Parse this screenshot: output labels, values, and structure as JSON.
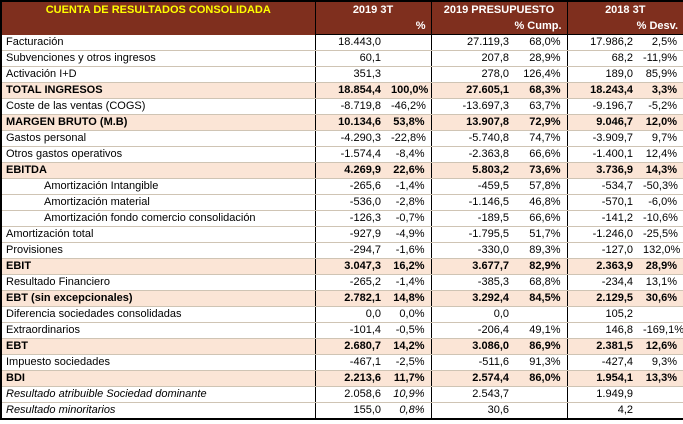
{
  "colors": {
    "header_bg": "#7F2F1E",
    "header_title_text": "#FFFF00",
    "header_text": "#FFFFFF",
    "highlight_row_bg": "#FBE5D6",
    "grid_line": "#CFC4B4",
    "border": "#000000"
  },
  "table": {
    "title": "CUENTA DE RESULTADOS CONSOLIDADA",
    "columns": [
      {
        "label": "2019 3T",
        "sub": "%"
      },
      {
        "label": "2019 PRESUPUESTO",
        "sub": "% Cump."
      },
      {
        "label": "2018 3T",
        "sub": "% Desv."
      }
    ],
    "rows": [
      {
        "label": "Facturación",
        "v1": "18.443,0",
        "p1": "",
        "v2": "27.119,3",
        "p2": "68,0%",
        "v3": "17.986,2",
        "p3": "2,5%"
      },
      {
        "label": "Subvenciones y otros ingresos",
        "v1": "60,1",
        "p1": "",
        "v2": "207,8",
        "p2": "28,9%",
        "v3": "68,2",
        "p3": "-11,9%"
      },
      {
        "label": "Activación I+D",
        "v1": "351,3",
        "p1": "",
        "v2": "278,0",
        "p2": "126,4%",
        "v3": "189,0",
        "p3": "85,9%"
      },
      {
        "label": "TOTAL INGRESOS",
        "v1": "18.854,4",
        "p1": "100,0%",
        "v2": "27.605,1",
        "p2": "68,3%",
        "v3": "18.243,4",
        "p3": "3,3%",
        "hl": true
      },
      {
        "label": "Coste de las ventas (COGS)",
        "v1": "-8.719,8",
        "p1": "-46,2%",
        "v2": "-13.697,3",
        "p2": "63,7%",
        "v3": "-9.196,7",
        "p3": "-5,2%"
      },
      {
        "label": "MARGEN BRUTO (M.B)",
        "v1": "10.134,6",
        "p1": "53,8%",
        "v2": "13.907,8",
        "p2": "72,9%",
        "v3": "9.046,7",
        "p3": "12,0%",
        "hl": true
      },
      {
        "label": "Gastos personal",
        "v1": "-4.290,3",
        "p1": "-22,8%",
        "v2": "-5.740,8",
        "p2": "74,7%",
        "v3": "-3.909,7",
        "p3": "9,7%"
      },
      {
        "label": "Otros gastos operativos",
        "v1": "-1.574,4",
        "p1": "-8,4%",
        "v2": "-2.363,8",
        "p2": "66,6%",
        "v3": "-1.400,1",
        "p3": "12,4%"
      },
      {
        "label": "EBITDA",
        "v1": "4.269,9",
        "p1": "22,6%",
        "v2": "5.803,2",
        "p2": "73,6%",
        "v3": "3.736,9",
        "p3": "14,3%",
        "hl": true
      },
      {
        "label": "Amortización Intangible",
        "v1": "-265,6",
        "p1": "-1,4%",
        "v2": "-459,5",
        "p2": "57,8%",
        "v3": "-534,7",
        "p3": "-50,3%",
        "ind": true
      },
      {
        "label": "Amortización material",
        "v1": "-536,0",
        "p1": "-2,8%",
        "v2": "-1.146,5",
        "p2": "46,8%",
        "v3": "-570,1",
        "p3": "-6,0%",
        "ind": true
      },
      {
        "label": "Amortización fondo comercio consolidación",
        "v1": "-126,3",
        "p1": "-0,7%",
        "v2": "-189,5",
        "p2": "66,6%",
        "v3": "-141,2",
        "p3": "-10,6%",
        "ind": true
      },
      {
        "label": "Amortización total",
        "v1": "-927,9",
        "p1": "-4,9%",
        "v2": "-1.795,5",
        "p2": "51,7%",
        "v3": "-1.246,0",
        "p3": "-25,5%"
      },
      {
        "label": "Provisiones",
        "v1": "-294,7",
        "p1": "-1,6%",
        "v2": "-330,0",
        "p2": "89,3%",
        "v3": "-127,0",
        "p3": "132,0%"
      },
      {
        "label": "EBIT",
        "v1": "3.047,3",
        "p1": "16,2%",
        "v2": "3.677,7",
        "p2": "82,9%",
        "v3": "2.363,9",
        "p3": "28,9%",
        "hl": true
      },
      {
        "label": "Resultado Financiero",
        "v1": "-265,2",
        "p1": "-1,4%",
        "v2": "-385,3",
        "p2": "68,8%",
        "v3": "-234,4",
        "p3": "13,1%"
      },
      {
        "label": "EBT (sin excepcionales)",
        "v1": "2.782,1",
        "p1": "14,8%",
        "v2": "3.292,4",
        "p2": "84,5%",
        "v3": "2.129,5",
        "p3": "30,6%",
        "hl": true
      },
      {
        "label": "Diferencia sociedades consolidadas",
        "v1": "0,0",
        "p1": "0,0%",
        "v2": "0,0",
        "p2": "",
        "v3": "105,2",
        "p3": ""
      },
      {
        "label": "Extraordinarios",
        "v1": "-101,4",
        "p1": "-0,5%",
        "v2": "-206,4",
        "p2": "49,1%",
        "v3": "146,8",
        "p3": "-169,1%"
      },
      {
        "label": "EBT",
        "v1": "2.680,7",
        "p1": "14,2%",
        "v2": "3.086,0",
        "p2": "86,9%",
        "v3": "2.381,5",
        "p3": "12,6%",
        "hl": true
      },
      {
        "label": "Impuesto sociedades",
        "v1": "-467,1",
        "p1": "-2,5%",
        "v2": "-511,6",
        "p2": "91,3%",
        "v3": "-427,4",
        "p3": "9,3%"
      },
      {
        "label": "BDI",
        "v1": "2.213,6",
        "p1": "11,7%",
        "v2": "2.574,4",
        "p2": "86,0%",
        "v3": "1.954,1",
        "p3": "13,3%",
        "hl": true
      },
      {
        "label": "Resultado atribuible Sociedad dominante",
        "v1": "2.058,6",
        "p1": "10,9%",
        "v2": "2.543,7",
        "p2": "",
        "v3": "1.949,9",
        "p3": "",
        "it": true
      },
      {
        "label": "Resultado minoritarios",
        "v1": "155,0",
        "p1": "0,8%",
        "v2": "30,6",
        "p2": "",
        "v3": "4,2",
        "p3": "",
        "it": true
      }
    ]
  }
}
